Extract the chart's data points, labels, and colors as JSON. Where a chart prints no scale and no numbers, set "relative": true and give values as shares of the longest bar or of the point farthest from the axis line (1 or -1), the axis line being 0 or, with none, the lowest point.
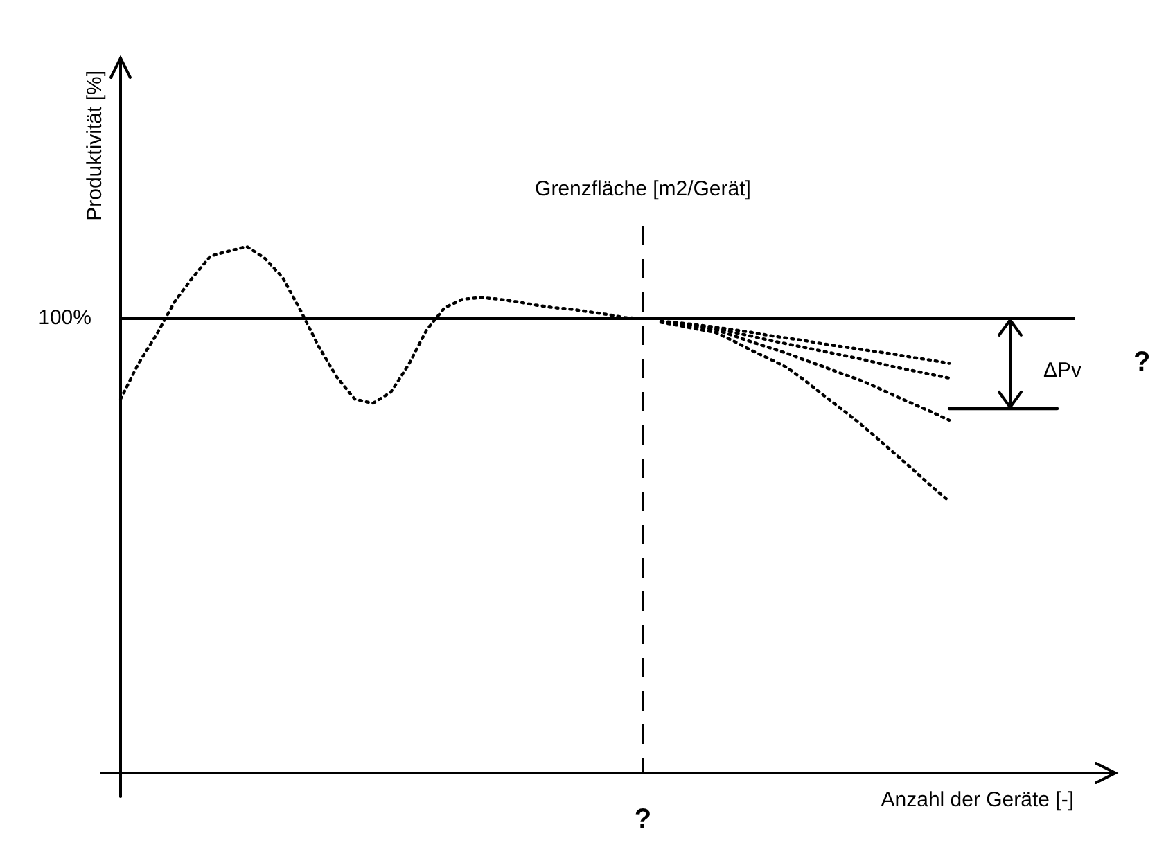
{
  "chart_data": {
    "type": "line",
    "relative": true,
    "xlabel": "Anzahl der Geräte [-]",
    "ylabel": "Produktivität [%]",
    "tick_labels": false,
    "grid": false,
    "legend": false,
    "line_style": "dotted",
    "marker": "none",
    "categories": [
      null,
      null,
      null,
      null,
      null,
      null,
      null,
      null,
      null,
      null,
      null,
      null,
      null,
      null,
      null,
      null,
      null,
      null,
      null,
      null,
      null,
      null,
      null,
      null,
      null,
      null,
      null,
      null,
      null,
      null,
      null,
      null,
      null,
      null,
      null,
      null,
      null,
      null,
      null,
      null,
      null,
      null,
      null,
      null,
      null,
      null,
      null,
      null,
      null,
      null,
      null,
      null,
      null,
      null
    ],
    "series": [
      {
        "color": "#000000",
        "values": [
          0.71,
          0.778,
          0.833,
          0.895,
          0.941,
          0.982,
          0.991,
          1,
          0.978,
          0.941,
          0.878,
          0.81,
          0.752,
          0.71,
          0.702,
          0.723,
          0.776,
          0.842,
          0.884,
          0.9,
          0.903,
          0.9,
          0.895,
          0.889,
          0.884,
          0.881,
          0.876,
          0.871,
          0.865,
          0.863,
          null,
          null,
          null,
          null,
          null,
          null,
          null,
          null,
          null,
          null,
          null,
          null,
          null,
          null,
          null,
          null,
          null,
          null,
          null,
          null,
          null,
          null,
          null,
          null
        ]
      },
      {
        "color": "#000000",
        "values": [
          null,
          null,
          null,
          null,
          null,
          null,
          null,
          null,
          null,
          null,
          null,
          null,
          null,
          null,
          null,
          null,
          null,
          null,
          null,
          null,
          null,
          null,
          null,
          null,
          null,
          null,
          null,
          null,
          null,
          null,
          0.858,
          0.855,
          0.851,
          0.847,
          0.842,
          0.837,
          0.831,
          0.826,
          0.821,
          0.815,
          0.81,
          0.805,
          0.8,
          0.795,
          0.789,
          0.784,
          0.778,
          null,
          null,
          null,
          null,
          null,
          null,
          null
        ]
      },
      {
        "color": "#000000",
        "values": [
          null,
          null,
          null,
          null,
          null,
          null,
          null,
          null,
          null,
          null,
          null,
          null,
          null,
          null,
          null,
          null,
          null,
          null,
          null,
          null,
          null,
          null,
          null,
          null,
          null,
          null,
          null,
          null,
          null,
          null,
          0.858,
          0.853,
          0.849,
          0.845,
          0.837,
          0.83,
          0.822,
          0.815,
          0.808,
          0.801,
          0.794,
          0.787,
          0.779,
          0.771,
          0.764,
          0.757,
          0.75,
          null,
          null,
          null,
          null,
          null,
          null,
          null
        ]
      },
      {
        "color": "#000000",
        "values": [
          null,
          null,
          null,
          null,
          null,
          null,
          null,
          null,
          null,
          null,
          null,
          null,
          null,
          null,
          null,
          null,
          null,
          null,
          null,
          null,
          null,
          null,
          null,
          null,
          null,
          null,
          null,
          null,
          null,
          null,
          0.858,
          0.852,
          0.847,
          0.842,
          0.831,
          0.819,
          0.808,
          0.797,
          0.784,
          0.772,
          0.759,
          0.747,
          0.732,
          0.716,
          0.701,
          0.686,
          0.67,
          null,
          null,
          null,
          null,
          null,
          null,
          null
        ]
      },
      {
        "color": "#000000",
        "values": [
          null,
          null,
          null,
          null,
          null,
          null,
          null,
          null,
          null,
          null,
          null,
          null,
          null,
          null,
          null,
          null,
          null,
          null,
          null,
          null,
          null,
          null,
          null,
          null,
          null,
          null,
          null,
          null,
          null,
          null,
          0.856,
          0.85,
          0.843,
          0.837,
          0.821,
          0.803,
          0.787,
          0.77,
          0.745,
          0.718,
          0.692,
          0.665,
          0.636,
          0.606,
          0.576,
          0.545,
          0.516,
          null,
          null,
          null,
          null,
          null,
          null,
          null
        ]
      },
      {
        "color": "#000000",
        "line_style": "solid",
        "values": [
          null,
          null,
          null,
          null,
          null,
          null,
          null,
          null,
          null,
          null,
          null,
          null,
          null,
          null,
          null,
          null,
          null,
          null,
          null,
          null,
          null,
          null,
          null,
          null,
          null,
          null,
          null,
          null,
          null,
          null,
          null,
          null,
          null,
          null,
          null,
          null,
          null,
          null,
          null,
          null,
          null,
          null,
          null,
          null,
          null,
          null,
          0.692,
          0.692,
          0.692,
          0.692,
          0.692,
          0.692,
          0.692,
          null
        ]
      }
    ],
    "ref_lines": [
      {
        "axis": "y",
        "value": 0.863,
        "color": "#000000",
        "line_style": "solid"
      }
    ],
    "annotations": [
      "100%",
      "Grenzfläche [m2/Gerät]",
      "ΔPv",
      "?",
      "?"
    ]
  }
}
